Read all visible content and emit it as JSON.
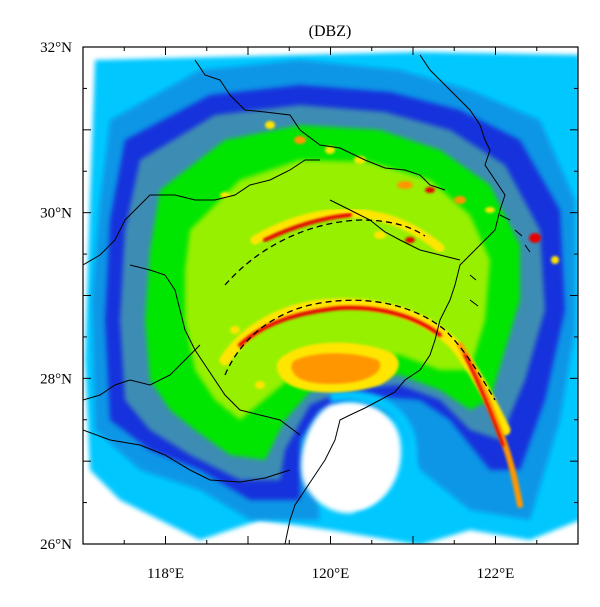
{
  "title": "(DBZ)",
  "map": {
    "lon_range": [
      117,
      123
    ],
    "lat_range": [
      26,
      32
    ],
    "x_ticks": [
      {
        "value": 118,
        "label": "118°E"
      },
      {
        "value": 120,
        "label": "120°E"
      },
      {
        "value": 122,
        "label": "122°E"
      }
    ],
    "y_ticks": [
      {
        "value": 26,
        "label": "26°N"
      },
      {
        "value": 28,
        "label": "28°N"
      },
      {
        "value": 30,
        "label": "30°N"
      },
      {
        "value": 32,
        "label": "32°N"
      }
    ],
    "minor_ticks_per_degree": 2
  },
  "reflectivity_colors": [
    "#00c8ff",
    "#0a96e6",
    "#1432dc",
    "#3c8cb4",
    "#00e600",
    "#96f000",
    "#ffe600",
    "#ff9600",
    "#e60000"
  ],
  "background_color": "#ffffff",
  "frame_color": "#000000",
  "dashed_arcs_color": "#000000"
}
